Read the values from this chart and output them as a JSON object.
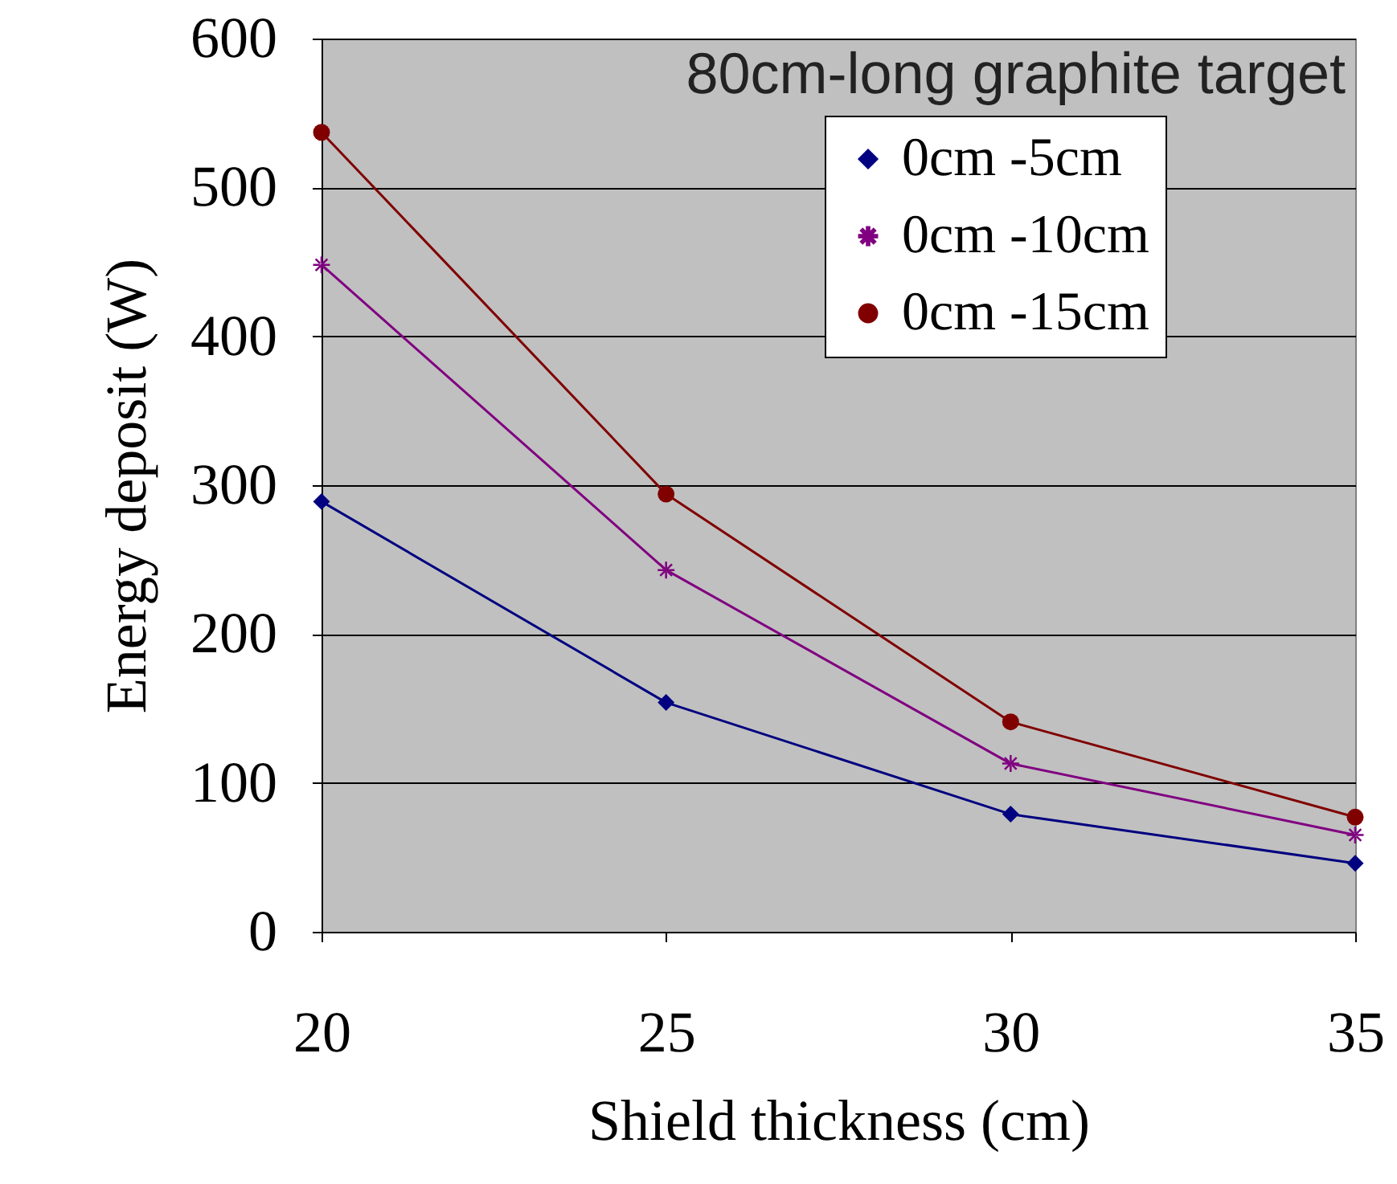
{
  "chart_data": {
    "type": "line",
    "annotations": [
      "80cm-long graphite target"
    ],
    "xlabel": "Shield thickness (cm)",
    "ylabel": "Energy deposit (W)",
    "x": [
      20,
      25,
      30,
      35
    ],
    "xlim": [
      20,
      35
    ],
    "xticks": [
      20,
      25,
      30,
      35
    ],
    "ylim": [
      0,
      600
    ],
    "yticks": [
      0,
      100,
      200,
      300,
      400,
      500,
      600
    ],
    "grid": "y",
    "legend": "top right",
    "line_style": "solid",
    "series": [
      {
        "name": "0cm -5cm",
        "color": "#000080",
        "marker": "diamond",
        "values": [
          289,
          154,
          79,
          46
        ]
      },
      {
        "name": "0cm -10cm",
        "color": "#800080",
        "marker": "star",
        "values": [
          448,
          243,
          113,
          65
        ]
      },
      {
        "name": "0cm -15cm",
        "color": "#800000",
        "marker": "circle",
        "values": [
          537,
          294,
          141,
          77
        ]
      }
    ]
  }
}
